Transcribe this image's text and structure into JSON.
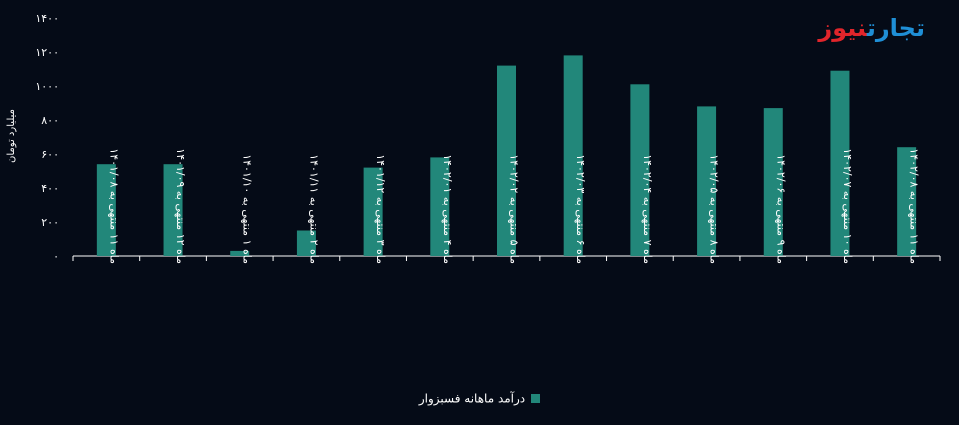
{
  "brand": {
    "part1": "تجارت",
    "part2": "نیوز",
    "color1": "#1f8fd6",
    "color2": "#e1252b"
  },
  "chart_data": {
    "type": "bar",
    "ylabel": "میلیارد تومان",
    "ylim": [
      0,
      1400
    ],
    "yticks": [
      "۰",
      "۲۰۰",
      "۴۰۰",
      "۶۰۰",
      "۸۰۰",
      "۱۰۰۰",
      "۱۲۰۰",
      "۱۴۰۰"
    ],
    "ytick_values": [
      0,
      200,
      400,
      600,
      800,
      1000,
      1200,
      1400
    ],
    "categories": [
      "ماه ۱۱ منتهی به ۱۴۰۱/۰۸",
      "ماه ۱۲ منتهی به ۱۴۰۱/۰۹",
      "ماه ۱ منتهی به ۱۴۰۱/۱۰",
      "ماه ۲ منتهی به ۱۴۰۱/۱۱",
      "ماه ۳ منتهی به ۱۴۰۱/۱۲",
      "ماه ۴ منتهی به ۱۴۰۲/۰۱",
      "ماه ۵ منتهی به ۱۴۰۲/۰۲",
      "ماه ۶ منتهی به ۱۴۰۲/۰۳",
      "ماه ۷ منتهی به ۱۴۰۲/۰۴",
      "ماه ۸ منتهی به ۱۴۰۲/۰۵",
      "ماه ۹ منتهی به ۱۴۰۲/۰۶",
      "ماه ۱۰ منتهی به ۱۴۰۲/۰۷",
      "ماه ۱۱ منتهی به ۱۴۰۲/۰۸"
    ],
    "series": [
      {
        "name": "درآمد ماهانه فسبزوار",
        "color": "#22877a",
        "values": [
          540,
          540,
          30,
          150,
          520,
          580,
          1120,
          1180,
          1010,
          880,
          870,
          1090,
          640
        ]
      }
    ],
    "grid": false,
    "legend_position": "bottom"
  }
}
